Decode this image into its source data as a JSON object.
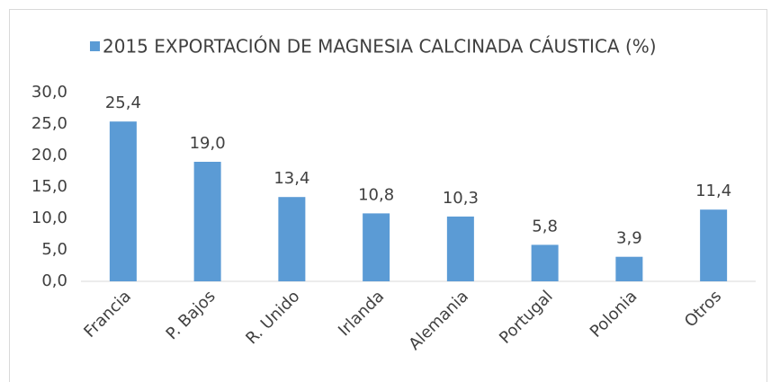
{
  "chart_data": {
    "type": "bar",
    "categories": [
      "Francia",
      "P. Bajos",
      "R. Unido",
      "Irlanda",
      "Alemania",
      "Portugal",
      "Polonia",
      "Otros"
    ],
    "series": [
      {
        "name": "2015 EXPORTACIÓN DE MAGNESIA CALCINADA CÁUSTICA (%)",
        "color": "#5b9bd5",
        "values": [
          25.4,
          19.0,
          13.4,
          10.8,
          10.3,
          5.8,
          3.9,
          11.4
        ],
        "value_labels": [
          "25,4",
          "19,0",
          "13,4",
          "10,8",
          "10,3",
          "5,8",
          "3,9",
          "11,4"
        ]
      }
    ],
    "ylim": [
      0,
      30
    ],
    "yticks": [
      {
        "value": 0,
        "label": "0,0"
      },
      {
        "value": 5,
        "label": "5,0"
      },
      {
        "value": 10,
        "label": "10,0"
      },
      {
        "value": 15,
        "label": "15,0"
      },
      {
        "value": 20,
        "label": "20,0"
      },
      {
        "value": 25,
        "label": "25,0"
      },
      {
        "value": 30,
        "label": "30,0"
      }
    ],
    "grid": false,
    "legend": "top"
  }
}
